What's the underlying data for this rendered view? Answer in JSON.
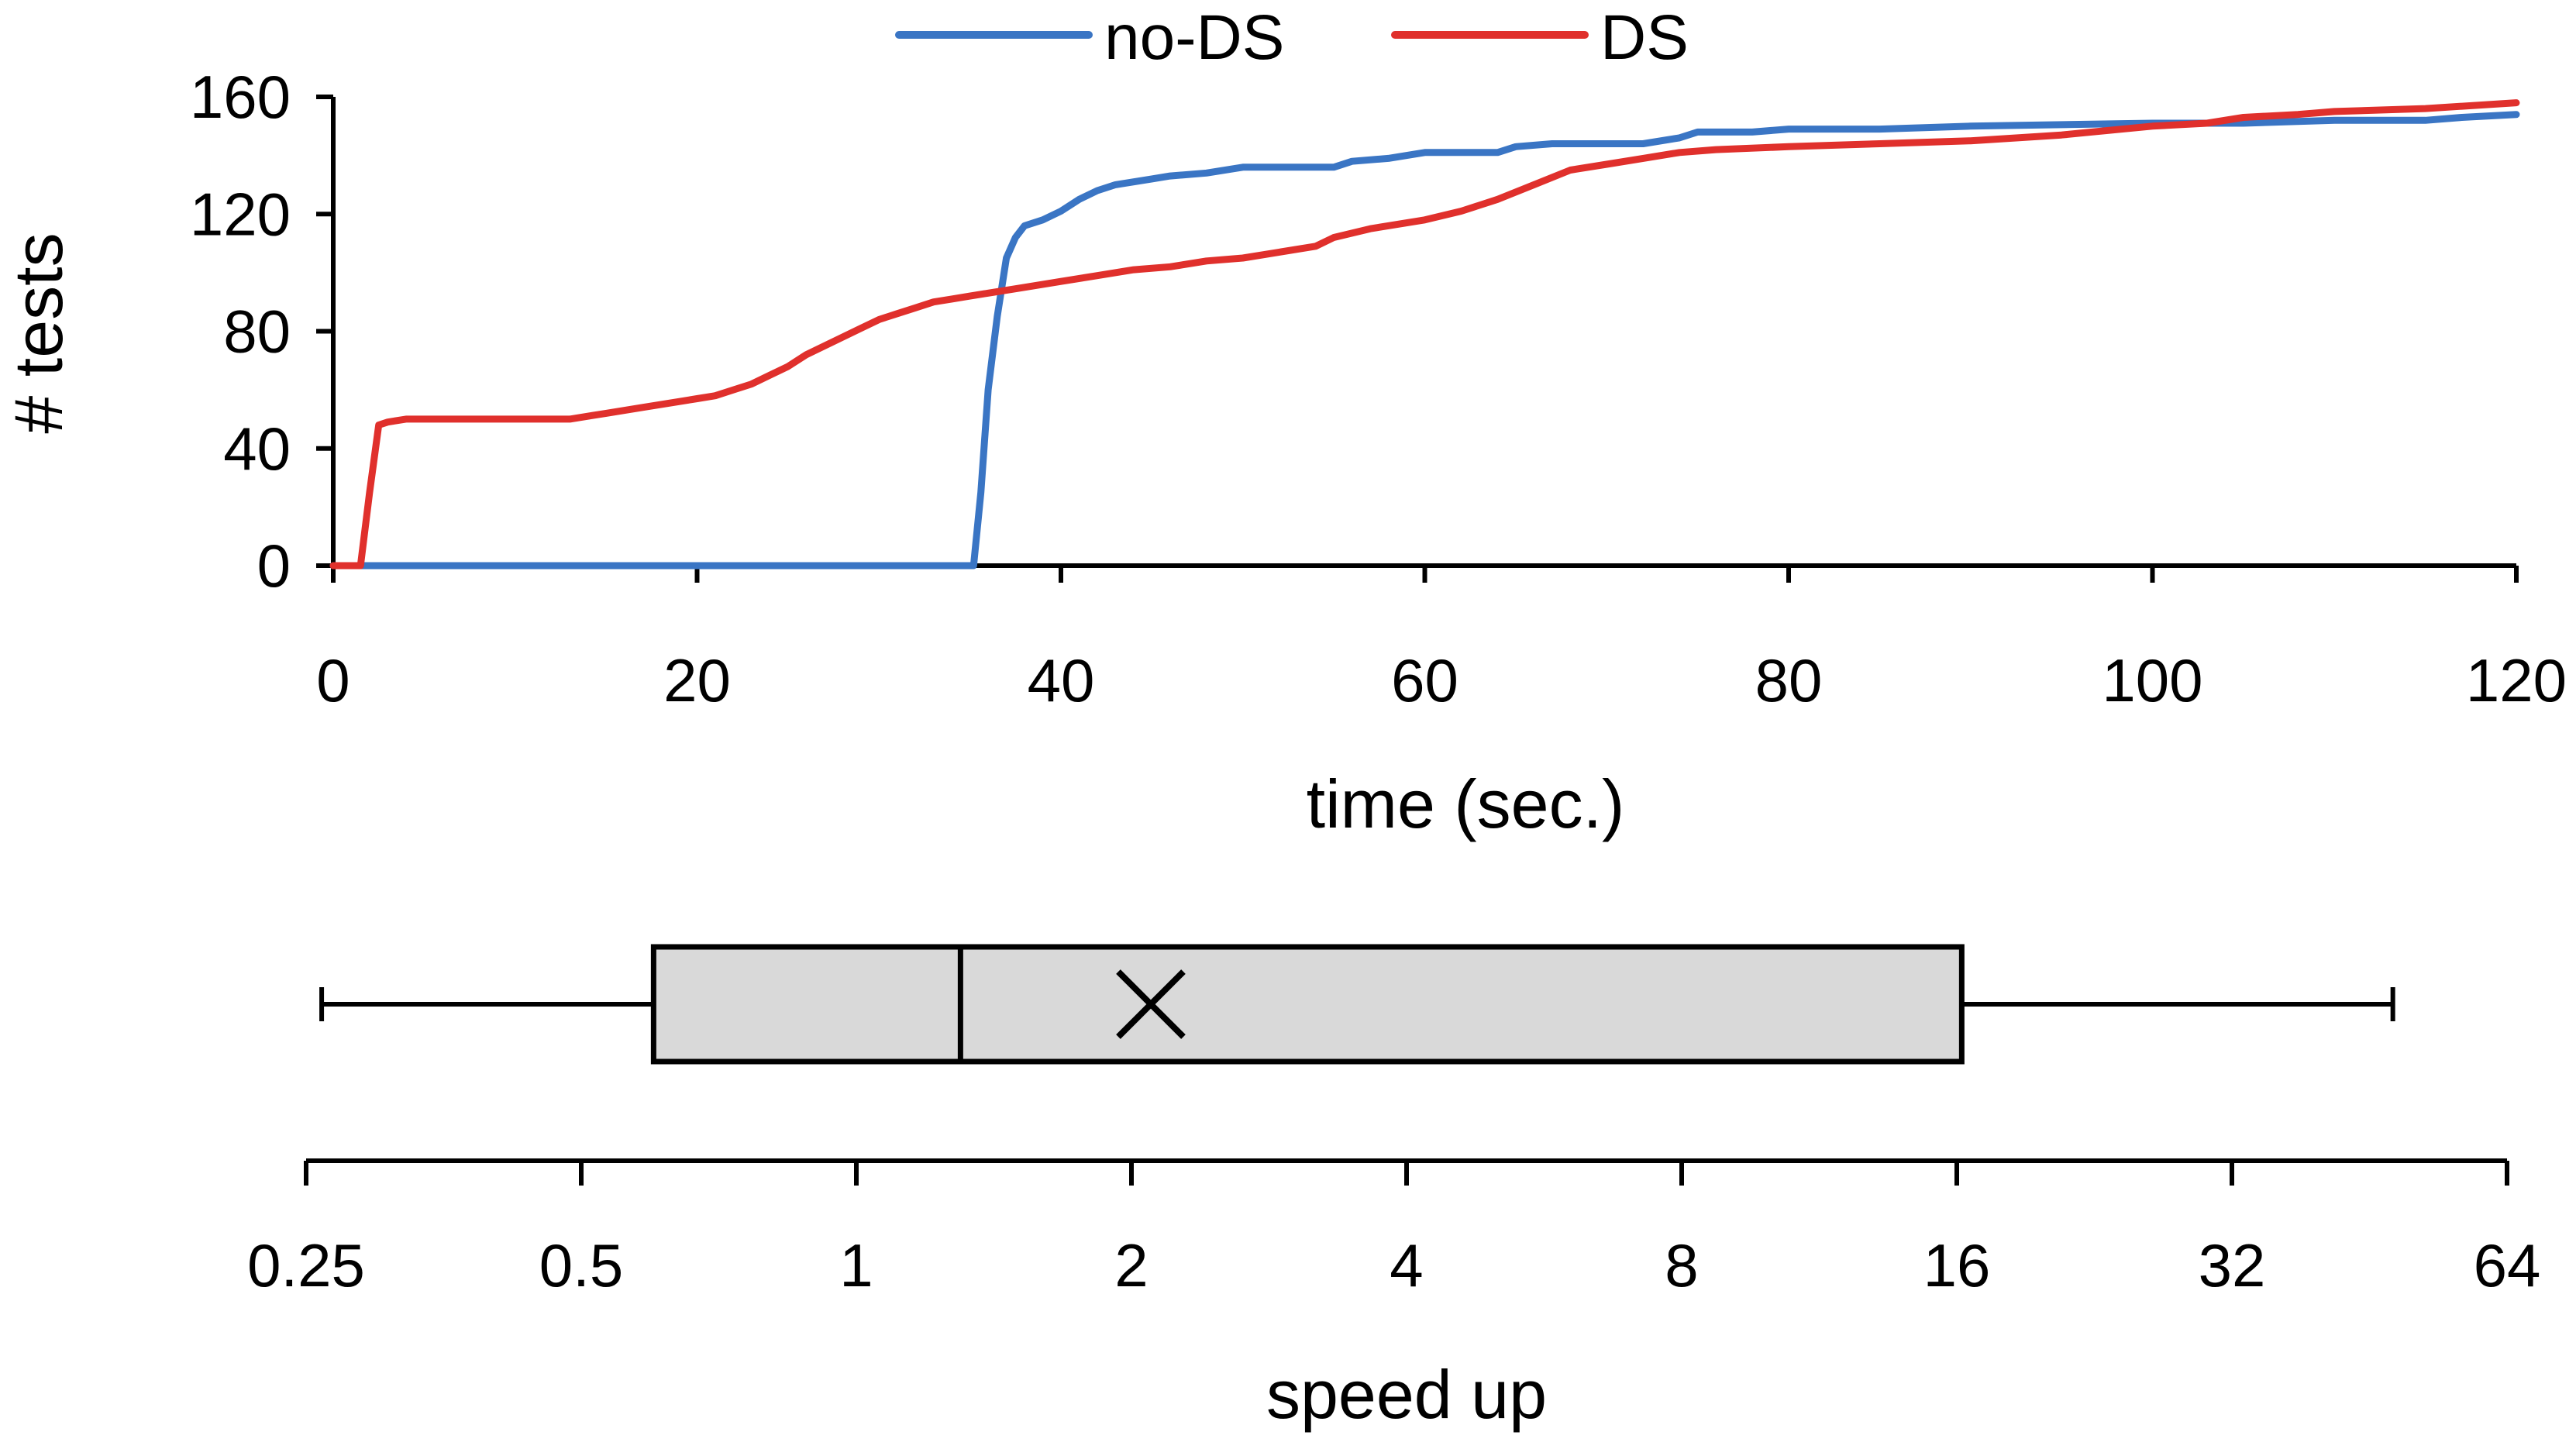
{
  "chart_data": [
    {
      "type": "line",
      "title": "",
      "xlabel": "time (sec.)",
      "ylabel": "# tests",
      "xlim": [
        0,
        120
      ],
      "ylim": [
        0,
        160
      ],
      "xticks": [
        0,
        20,
        40,
        60,
        80,
        100,
        120
      ],
      "yticks": [
        0,
        40,
        80,
        120,
        160
      ],
      "grid": false,
      "legend_position": "top-center",
      "series": [
        {
          "name": "no-DS",
          "color": "#3a75c4",
          "x": [
            0,
            34.8,
            35.2,
            35.6,
            36.0,
            36.5,
            37.0,
            37.5,
            38.0,
            39.0,
            40.0,
            41.0,
            42.0,
            43.0,
            44.0,
            45.0,
            46.0,
            48.0,
            50.0,
            52.0,
            55.0,
            56.0,
            58.0,
            60.0,
            62.0,
            64.0,
            65.0,
            67.0,
            70.0,
            72.0,
            74.0,
            75.0,
            78.0,
            80.0,
            85.0,
            90.0,
            100.0,
            105.0,
            110.0,
            115.0,
            117.0,
            120.0
          ],
          "y": [
            0,
            0,
            0,
            25,
            60,
            85,
            105,
            112,
            116,
            118,
            121,
            125,
            128,
            130,
            131,
            132,
            133,
            134,
            136,
            136,
            136,
            138,
            139,
            141,
            141,
            141,
            143,
            144,
            144,
            144,
            146,
            148,
            148,
            149,
            149,
            150,
            151,
            151,
            152,
            152,
            153,
            154
          ]
        },
        {
          "name": "DS",
          "color": "#e0302c",
          "x": [
            0,
            1.5,
            2.0,
            2.5,
            3.0,
            4.0,
            5.0,
            8.0,
            10.0,
            12.0,
            13.0,
            15.0,
            17.0,
            19.0,
            20.0,
            21.0,
            22.0,
            23.0,
            24.0,
            25.0,
            26.0,
            27.0,
            28.0,
            29.0,
            30.0,
            31.0,
            32.0,
            33.0,
            34.0,
            35.0,
            36.0,
            37.0,
            38.0,
            40.0,
            42.0,
            44.0,
            46.0,
            48.0,
            50.0,
            52.0,
            54.0,
            55.0,
            57.0,
            60.0,
            62.0,
            64.0,
            66.0,
            68.0,
            70.0,
            72.0,
            74.0,
            76.0,
            80.0,
            85.0,
            90.0,
            95.0,
            100.0,
            103.0,
            105.0,
            108.0,
            110.0,
            115.0,
            120.0
          ],
          "y": [
            0,
            0,
            25,
            48,
            49,
            50,
            50,
            50,
            50,
            50,
            50,
            52,
            54,
            56,
            57,
            58,
            60,
            62,
            65,
            68,
            72,
            75,
            78,
            81,
            84,
            86,
            88,
            90,
            91,
            92,
            93,
            94,
            95,
            97,
            99,
            101,
            102,
            104,
            105,
            107,
            109,
            112,
            115,
            118,
            121,
            125,
            130,
            135,
            137,
            139,
            141,
            142,
            143,
            144,
            145,
            147,
            150,
            151,
            153,
            154,
            155,
            156,
            158
          ]
        }
      ],
      "legend": [
        "no-DS",
        "DS"
      ]
    },
    {
      "type": "box",
      "xlabel": "speed up",
      "xscale": "log2",
      "xlim": [
        0.25,
        64
      ],
      "xticks": [
        0.25,
        0.5,
        1,
        2,
        4,
        8,
        16,
        32,
        64
      ],
      "xtick_labels": [
        "0.25",
        "0.5",
        "1",
        "2",
        "4",
        "8",
        "16",
        "32",
        "64"
      ],
      "whisker_low": 0.26,
      "q1": 0.6,
      "median": 1.3,
      "mean": 2.1,
      "q3": 16.2,
      "whisker_high": 48,
      "box_fill": "#d9d9d9",
      "grid": false
    }
  ]
}
